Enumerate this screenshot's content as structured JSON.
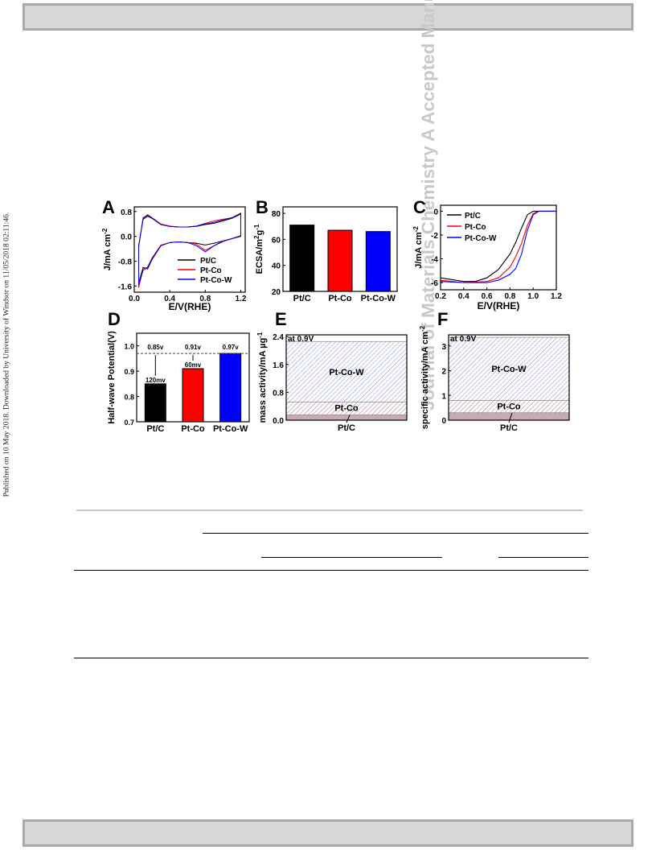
{
  "sidebar_left": "Published on 10 May 2018. Downloaded by University of Windsor on 11/05/2018 02:11:46.",
  "sidebar_right": "Journal of Materials Chemistry A Accepted Manuscript",
  "colors": {
    "pt_c": "#000000",
    "pt_co": "#ff0000",
    "pt_co_w": "#0000ff"
  },
  "panels": {
    "A": {
      "label": "A",
      "ylabel": "J/mA cm",
      "ylabel_sup": "-2",
      "xlabel": "E/V(RHE)",
      "xticks": [
        "0.0",
        "0.4",
        "0.8",
        "1.2"
      ],
      "yticks": [
        "0.8",
        "0.0",
        "-0.8",
        "-1.6"
      ],
      "legend": [
        "Pt/C",
        "Pt-Co",
        "Pt-Co-W"
      ]
    },
    "B": {
      "label": "B",
      "ylabel": "ECSA/m",
      "ylabel_sup1": "2",
      "ylabel_mid": "g",
      "ylabel_sup2": "-1",
      "yticks": [
        "80",
        "60",
        "40",
        "20"
      ]
    },
    "C": {
      "label": "C",
      "ylabel": "J/mA cm",
      "ylabel_sup": "-2",
      "xlabel": "E/V(RHE)",
      "xticks": [
        "0.2",
        "0.4",
        "0.6",
        "0.8",
        "1.0",
        "1.2"
      ],
      "yticks": [
        "0",
        "-2",
        "-4",
        "-6"
      ],
      "legend": [
        "Pt/C",
        "Pt-Co",
        "Pt-Co-W"
      ]
    },
    "D": {
      "label": "D",
      "ylabel": "Half-wave Potential(V)",
      "yticks": [
        "1.0",
        "0.9",
        "0.8",
        "0.7"
      ],
      "bar_labels": [
        "0.85v",
        "0.91v",
        "0.97v"
      ],
      "diff_labels": [
        "120mv",
        "60mv"
      ]
    },
    "E": {
      "label": "E",
      "ylabel": "mass activity/mA µg",
      "ylabel_sup": "-1",
      "yticks": [
        "2.4",
        "1.6",
        "0.8",
        "0.0"
      ],
      "note": "at 0.9V",
      "labels": [
        "Pt-Co-W",
        "Pt-Co",
        "Pt/C"
      ]
    },
    "F": {
      "label": "F",
      "ylabel": "specific activity/mA cm",
      "ylabel_sup": "-2",
      "yticks": [
        "3",
        "2",
        "1",
        "0"
      ],
      "note": "at 0.9V",
      "labels": [
        "Pt-Co-W",
        "Pt-Co",
        "Pt/C"
      ]
    }
  },
  "chart_data": [
    {
      "type": "line",
      "panel": "A",
      "xlabel": "E/V(RHE)",
      "ylabel": "J/mA cm-2",
      "xlim": [
        0.0,
        1.25
      ],
      "ylim": [
        -1.8,
        0.95
      ],
      "series": [
        {
          "name": "Pt/C",
          "x": [
            0.05,
            0.1,
            0.15,
            0.2,
            0.3,
            0.4,
            0.5,
            0.6,
            0.7,
            0.8,
            0.9,
            1.0,
            1.1,
            1.2
          ],
          "anodic": [
            -0.3,
            0.55,
            0.65,
            0.58,
            0.38,
            0.32,
            0.3,
            0.3,
            0.32,
            0.38,
            0.42,
            0.5,
            0.58,
            0.72
          ],
          "cathodic": [
            -1.5,
            -1.0,
            -1.05,
            -0.75,
            -0.3,
            -0.2,
            -0.18,
            -0.2,
            -0.22,
            -0.28,
            -0.22,
            -0.15,
            -0.08,
            0.0
          ]
        },
        {
          "name": "Pt-Co",
          "x": [
            0.05,
            0.1,
            0.15,
            0.2,
            0.3,
            0.4,
            0.5,
            0.6,
            0.7,
            0.8,
            0.9,
            1.0,
            1.1,
            1.2
          ],
          "anodic": [
            -0.35,
            0.58,
            0.7,
            0.6,
            0.4,
            0.33,
            0.3,
            0.3,
            0.33,
            0.42,
            0.5,
            0.55,
            0.6,
            0.75
          ],
          "cathodic": [
            -1.65,
            -1.05,
            -1.0,
            -0.7,
            -0.28,
            -0.2,
            -0.18,
            -0.2,
            -0.25,
            -0.45,
            -0.3,
            -0.17,
            -0.08,
            0.02
          ]
        },
        {
          "name": "Pt-Co-W",
          "x": [
            0.05,
            0.1,
            0.15,
            0.2,
            0.3,
            0.4,
            0.5,
            0.6,
            0.7,
            0.8,
            0.9,
            1.0,
            1.1,
            1.2
          ],
          "anodic": [
            -0.3,
            0.6,
            0.68,
            0.6,
            0.38,
            0.32,
            0.3,
            0.3,
            0.33,
            0.4,
            0.45,
            0.53,
            0.6,
            0.73
          ],
          "cathodic": [
            -1.55,
            -1.1,
            -1.0,
            -0.72,
            -0.3,
            -0.2,
            -0.18,
            -0.2,
            -0.3,
            -0.5,
            -0.3,
            -0.15,
            -0.07,
            0.02
          ]
        }
      ]
    },
    {
      "type": "bar",
      "panel": "B",
      "ylabel": "ECSA/m2 g-1",
      "ylim": [
        20,
        85
      ],
      "categories": [
        "Pt/C",
        "Pt-Co",
        "Pt-Co-W"
      ],
      "values": [
        71,
        67,
        66
      ]
    },
    {
      "type": "line",
      "panel": "C",
      "xlabel": "E/V(RHE)",
      "ylabel": "J/mA cm-2",
      "xlim": [
        0.2,
        1.2
      ],
      "ylim": [
        -6.6,
        0.5
      ],
      "series": [
        {
          "name": "Pt/C",
          "x": [
            0.2,
            0.4,
            0.5,
            0.6,
            0.7,
            0.8,
            0.85,
            0.9,
            0.95,
            1.0,
            1.1,
            1.2
          ],
          "y": [
            -5.6,
            -5.9,
            -5.9,
            -5.6,
            -4.9,
            -3.6,
            -2.6,
            -1.4,
            -0.3,
            0.0,
            0.0,
            0.0
          ]
        },
        {
          "name": "Pt-Co",
          "x": [
            0.2,
            0.4,
            0.6,
            0.7,
            0.8,
            0.85,
            0.9,
            0.95,
            1.0,
            1.05,
            1.1,
            1.2
          ],
          "y": [
            -5.8,
            -6.0,
            -5.9,
            -5.6,
            -4.7,
            -3.8,
            -2.7,
            -1.2,
            -0.2,
            0.0,
            0.0,
            0.0
          ]
        },
        {
          "name": "Pt-Co-W",
          "x": [
            0.2,
            0.4,
            0.6,
            0.7,
            0.8,
            0.85,
            0.9,
            0.95,
            1.0,
            1.05,
            1.1,
            1.2
          ],
          "y": [
            -5.9,
            -6.0,
            -6.0,
            -5.8,
            -5.3,
            -4.8,
            -3.6,
            -1.6,
            -0.3,
            0.0,
            0.0,
            0.0
          ]
        }
      ]
    },
    {
      "type": "bar",
      "panel": "D",
      "ylabel": "Half-wave Potential(V)",
      "ylim": [
        0.7,
        1.05
      ],
      "categories": [
        "Pt/C",
        "Pt-Co",
        "Pt-Co-W"
      ],
      "values": [
        0.85,
        0.91,
        0.97
      ]
    },
    {
      "type": "bar",
      "panel": "E",
      "ylabel": "mass activity/mA ug-1",
      "ylim": [
        0,
        2.45
      ],
      "categories": [
        "Pt/C",
        "Pt-Co",
        "Pt-Co-W"
      ],
      "values": [
        0.15,
        0.52,
        2.26
      ]
    },
    {
      "type": "bar",
      "panel": "F",
      "ylabel": "specific activity/mA cm-2",
      "ylim": [
        0,
        3.45
      ],
      "categories": [
        "Pt/C",
        "Pt-Co",
        "Pt-Co-W"
      ],
      "values": [
        0.3,
        0.8,
        3.35
      ]
    }
  ]
}
